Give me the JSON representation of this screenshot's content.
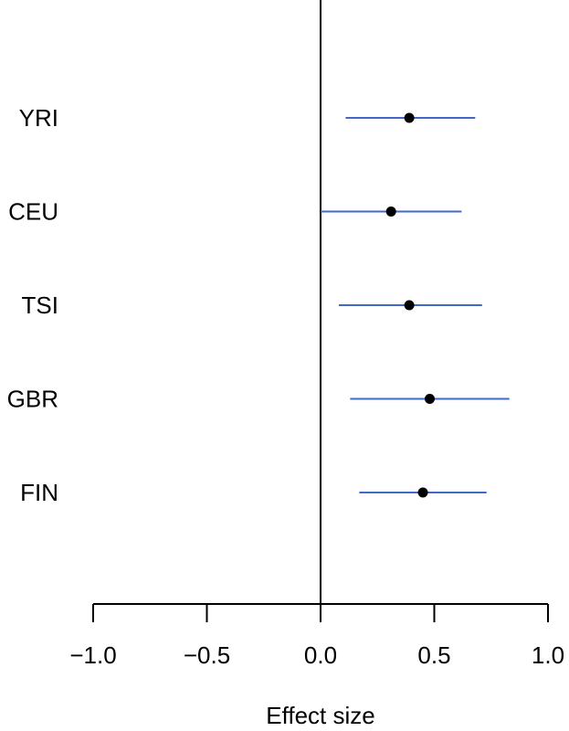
{
  "chart_data": {
    "type": "scatter",
    "categories": [
      "YRI",
      "CEU",
      "TSI",
      "GBR",
      "FIN"
    ],
    "estimates": [
      0.39,
      0.31,
      0.39,
      0.48,
      0.45
    ],
    "ci_lower": [
      0.11,
      0.0,
      0.08,
      0.13,
      0.17
    ],
    "ci_upper": [
      0.68,
      0.62,
      0.71,
      0.83,
      0.73
    ],
    "xlim": [
      -1.0,
      1.0
    ],
    "x_ticks": [
      -1.0,
      -0.5,
      0.0,
      0.5,
      1.0
    ],
    "x_tick_labels": [
      "−1.0",
      "−0.5",
      "0.0",
      "0.5",
      "1.0"
    ],
    "xlabel": "Effect size",
    "reference_line_x": 0.0,
    "grid": false,
    "colors": {
      "interval": "#4169c8",
      "point": "#000000",
      "axis": "#000000"
    }
  }
}
